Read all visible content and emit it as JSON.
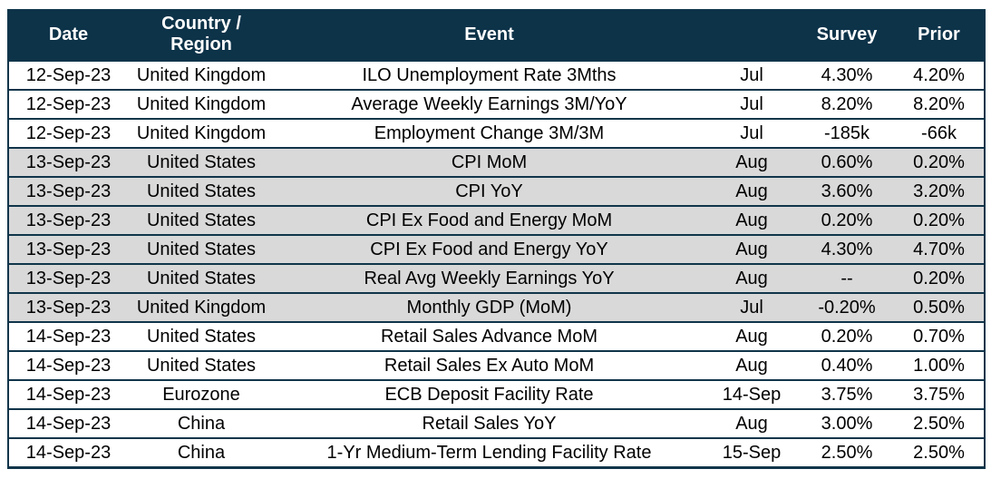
{
  "table": {
    "title": "economic-calendar",
    "colors": {
      "header_bg": "#0d3349",
      "header_text": "#ffffff",
      "border": "#10354a",
      "row_bg": "#ffffff",
      "row_shaded_bg": "#d9d9d9"
    },
    "columns": [
      {
        "key": "date",
        "label": "Date"
      },
      {
        "key": "region",
        "label": "Country /\nRegion"
      },
      {
        "key": "event",
        "label": "Event"
      },
      {
        "key": "period",
        "label": ""
      },
      {
        "key": "survey",
        "label": "Survey"
      },
      {
        "key": "prior",
        "label": "Prior"
      }
    ],
    "rows": [
      {
        "date": "12-Sep-23",
        "region": "United Kingdom",
        "event": "ILO Unemployment Rate 3Mths",
        "period": "Jul",
        "survey": "4.30%",
        "prior": "4.20%",
        "shaded": false
      },
      {
        "date": "12-Sep-23",
        "region": "United Kingdom",
        "event": "Average Weekly Earnings 3M/YoY",
        "period": "Jul",
        "survey": "8.20%",
        "prior": "8.20%",
        "shaded": false
      },
      {
        "date": "12-Sep-23",
        "region": "United Kingdom",
        "event": "Employment Change 3M/3M",
        "period": "Jul",
        "survey": "-185k",
        "prior": "-66k",
        "shaded": false
      },
      {
        "date": "13-Sep-23",
        "region": "United States",
        "event": "CPI MoM",
        "period": "Aug",
        "survey": "0.60%",
        "prior": "0.20%",
        "shaded": true
      },
      {
        "date": "13-Sep-23",
        "region": "United States",
        "event": "CPI YoY",
        "period": "Aug",
        "survey": "3.60%",
        "prior": "3.20%",
        "shaded": true
      },
      {
        "date": "13-Sep-23",
        "region": "United States",
        "event": "CPI Ex Food and Energy MoM",
        "period": "Aug",
        "survey": "0.20%",
        "prior": "0.20%",
        "shaded": true
      },
      {
        "date": "13-Sep-23",
        "region": "United States",
        "event": "CPI Ex Food and Energy YoY",
        "period": "Aug",
        "survey": "4.30%",
        "prior": "4.70%",
        "shaded": true
      },
      {
        "date": "13-Sep-23",
        "region": "United States",
        "event": "Real Avg Weekly Earnings YoY",
        "period": "Aug",
        "survey": "--",
        "prior": "0.20%",
        "shaded": true
      },
      {
        "date": "13-Sep-23",
        "region": "United Kingdom",
        "event": "Monthly GDP (MoM)",
        "period": "Jul",
        "survey": "-0.20%",
        "prior": "0.50%",
        "shaded": true
      },
      {
        "date": "14-Sep-23",
        "region": "United States",
        "event": "Retail Sales Advance MoM",
        "period": "Aug",
        "survey": "0.20%",
        "prior": "0.70%",
        "shaded": false
      },
      {
        "date": "14-Sep-23",
        "region": "United States",
        "event": "Retail Sales Ex Auto MoM",
        "period": "Aug",
        "survey": "0.40%",
        "prior": "1.00%",
        "shaded": false
      },
      {
        "date": "14-Sep-23",
        "region": "Eurozone",
        "event": "ECB Deposit Facility Rate",
        "period": "14-Sep",
        "survey": "3.75%",
        "prior": "3.75%",
        "shaded": false
      },
      {
        "date": "14-Sep-23",
        "region": "China",
        "event": "Retail Sales YoY",
        "period": "Aug",
        "survey": "3.00%",
        "prior": "2.50%",
        "shaded": false
      },
      {
        "date": "14-Sep-23",
        "region": "China",
        "event": "1-Yr Medium-Term Lending Facility Rate",
        "period": "15-Sep",
        "survey": "2.50%",
        "prior": "2.50%",
        "shaded": false
      }
    ]
  }
}
